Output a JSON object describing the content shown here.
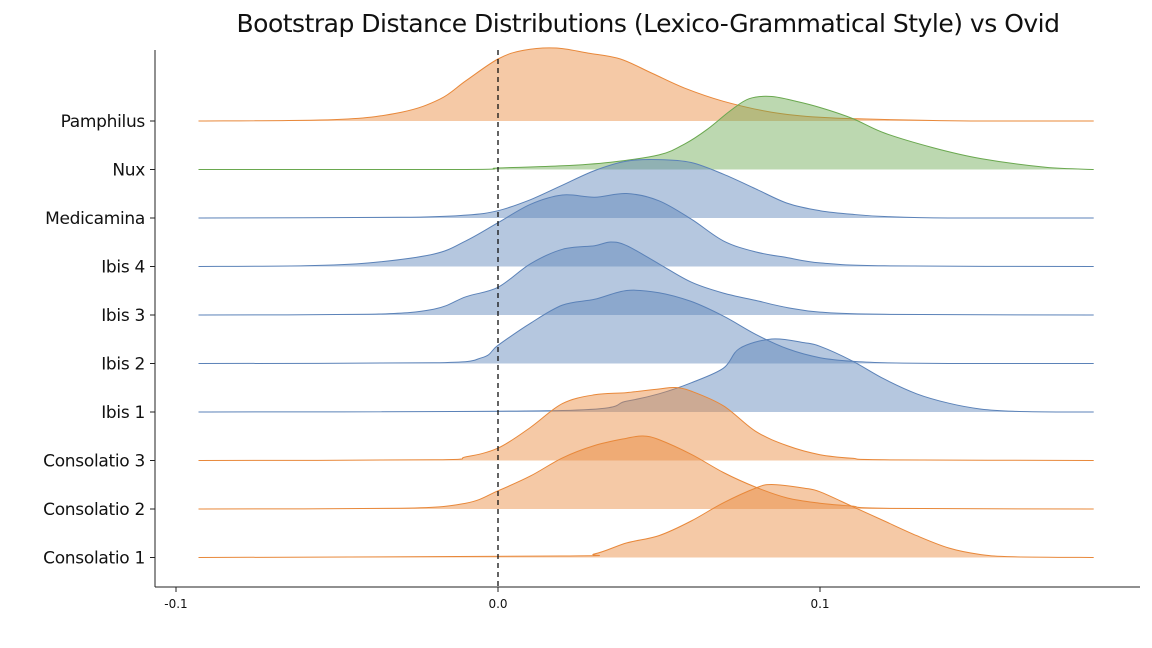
{
  "chart_data": {
    "type": "area",
    "title": "Bootstrap Distance Distributions (Lexico-Grammatical Style) vs Ovid",
    "xlabel": "",
    "ylabel": "",
    "xlim": [
      -0.1,
      0.2
    ],
    "xticks": [
      {
        "value": -0.1,
        "label": "-0.1"
      },
      {
        "value": 0.0,
        "label": "0.0"
      },
      {
        "value": 0.1,
        "label": "0.1"
      }
    ],
    "reference_line": {
      "x": 0.0,
      "style": "dashed"
    },
    "grid": false,
    "colors": {
      "orange": "#E8883A",
      "green": "#6AA84F",
      "blue": "#5B82B8"
    },
    "series": [
      {
        "name": "Pamphilus",
        "color": "#E8883A",
        "x": [
          -0.093,
          -0.05,
          -0.03,
          -0.018,
          -0.01,
          0.0,
          0.008,
          0.018,
          0.028,
          0.038,
          0.048,
          0.058,
          0.07,
          0.085,
          0.1,
          0.12,
          0.15,
          0.185
        ],
        "density": [
          0,
          0.02,
          0.12,
          0.3,
          0.55,
          0.85,
          0.97,
          1.0,
          0.93,
          0.85,
          0.65,
          0.45,
          0.27,
          0.12,
          0.05,
          0.02,
          0.0,
          0
        ]
      },
      {
        "name": "Nux",
        "color": "#6AA84F",
        "x": [
          -0.093,
          -0.01,
          0.0,
          0.02,
          0.035,
          0.05,
          0.058,
          0.065,
          0.072,
          0.078,
          0.085,
          0.093,
          0.1,
          0.11,
          0.12,
          0.135,
          0.15,
          0.17,
          0.185
        ],
        "density": [
          0,
          0.0,
          0.02,
          0.05,
          0.1,
          0.2,
          0.35,
          0.55,
          0.8,
          0.97,
          1.0,
          0.93,
          0.85,
          0.7,
          0.5,
          0.3,
          0.15,
          0.03,
          0
        ]
      },
      {
        "name": "Medicamina",
        "color": "#5B82B8",
        "x": [
          -0.093,
          -0.03,
          -0.01,
          0.0,
          0.01,
          0.02,
          0.03,
          0.04,
          0.05,
          0.06,
          0.07,
          0.08,
          0.09,
          0.1,
          0.11,
          0.12,
          0.14,
          0.185
        ],
        "density": [
          0,
          0.01,
          0.04,
          0.1,
          0.25,
          0.45,
          0.65,
          0.78,
          0.8,
          0.76,
          0.6,
          0.4,
          0.2,
          0.1,
          0.05,
          0.02,
          0.0,
          0
        ]
      },
      {
        "name": "Ibis 4",
        "color": "#5B82B8",
        "x": [
          -0.093,
          -0.06,
          -0.04,
          -0.02,
          -0.01,
          0.0,
          0.01,
          0.02,
          0.03,
          0.04,
          0.05,
          0.06,
          0.07,
          0.08,
          0.09,
          0.1,
          0.12,
          0.185
        ],
        "density": [
          0,
          0.01,
          0.05,
          0.17,
          0.35,
          0.6,
          0.85,
          0.98,
          0.95,
          1.0,
          0.9,
          0.65,
          0.35,
          0.2,
          0.12,
          0.05,
          0.01,
          0
        ]
      },
      {
        "name": "Ibis 3",
        "color": "#5B82B8",
        "x": [
          -0.093,
          -0.04,
          -0.02,
          -0.01,
          0.0,
          0.01,
          0.02,
          0.03,
          0.035,
          0.04,
          0.05,
          0.06,
          0.07,
          0.08,
          0.09,
          0.1,
          0.12,
          0.185
        ],
        "density": [
          0,
          0.01,
          0.08,
          0.25,
          0.38,
          0.7,
          0.9,
          0.95,
          1.0,
          0.95,
          0.7,
          0.45,
          0.3,
          0.2,
          0.1,
          0.04,
          0.01,
          0
        ]
      },
      {
        "name": "Ibis 2",
        "color": "#5B82B8",
        "x": [
          -0.093,
          -0.02,
          -0.005,
          0.0,
          0.01,
          0.02,
          0.03,
          0.04,
          0.05,
          0.06,
          0.07,
          0.08,
          0.09,
          0.1,
          0.11,
          0.12,
          0.14,
          0.185
        ],
        "density": [
          0,
          0.01,
          0.08,
          0.25,
          0.55,
          0.8,
          0.88,
          1.0,
          0.97,
          0.85,
          0.65,
          0.4,
          0.2,
          0.08,
          0.03,
          0.01,
          0.0,
          0
        ]
      },
      {
        "name": "Ibis 1",
        "color": "#5B82B8",
        "x": [
          -0.093,
          0.02,
          0.04,
          0.05,
          0.06,
          0.07,
          0.075,
          0.085,
          0.095,
          0.1,
          0.11,
          0.12,
          0.13,
          0.14,
          0.15,
          0.16,
          0.175,
          0.185
        ],
        "density": [
          0,
          0.02,
          0.15,
          0.25,
          0.4,
          0.6,
          0.87,
          1.0,
          0.95,
          0.9,
          0.7,
          0.45,
          0.25,
          0.12,
          0.04,
          0.01,
          0.0,
          0
        ]
      },
      {
        "name": "Consolatio 3",
        "color": "#E8883A",
        "x": [
          -0.093,
          -0.02,
          -0.01,
          0.0,
          0.01,
          0.02,
          0.03,
          0.04,
          0.05,
          0.055,
          0.06,
          0.07,
          0.08,
          0.09,
          0.1,
          0.11,
          0.12,
          0.185
        ],
        "density": [
          0,
          0.01,
          0.05,
          0.17,
          0.45,
          0.78,
          0.9,
          0.93,
          0.98,
          1.0,
          0.95,
          0.75,
          0.4,
          0.2,
          0.08,
          0.03,
          0.01,
          0
        ]
      },
      {
        "name": "Consolatio 2",
        "color": "#E8883A",
        "x": [
          -0.093,
          -0.03,
          -0.01,
          0.0,
          0.01,
          0.02,
          0.03,
          0.04,
          0.045,
          0.05,
          0.06,
          0.07,
          0.08,
          0.09,
          0.1,
          0.11,
          0.12,
          0.185
        ],
        "density": [
          0,
          0.01,
          0.08,
          0.25,
          0.45,
          0.7,
          0.87,
          0.97,
          1.0,
          0.95,
          0.75,
          0.5,
          0.3,
          0.15,
          0.08,
          0.04,
          0.01,
          0
        ]
      },
      {
        "name": "Consolatio 1",
        "color": "#E8883A",
        "x": [
          -0.093,
          0.02,
          0.03,
          0.04,
          0.05,
          0.06,
          0.07,
          0.08,
          0.085,
          0.095,
          0.1,
          0.11,
          0.12,
          0.13,
          0.14,
          0.15,
          0.16,
          0.185
        ],
        "density": [
          0,
          0.02,
          0.05,
          0.2,
          0.3,
          0.5,
          0.75,
          0.95,
          1.0,
          0.95,
          0.9,
          0.7,
          0.5,
          0.3,
          0.13,
          0.04,
          0.01,
          0
        ]
      }
    ]
  }
}
